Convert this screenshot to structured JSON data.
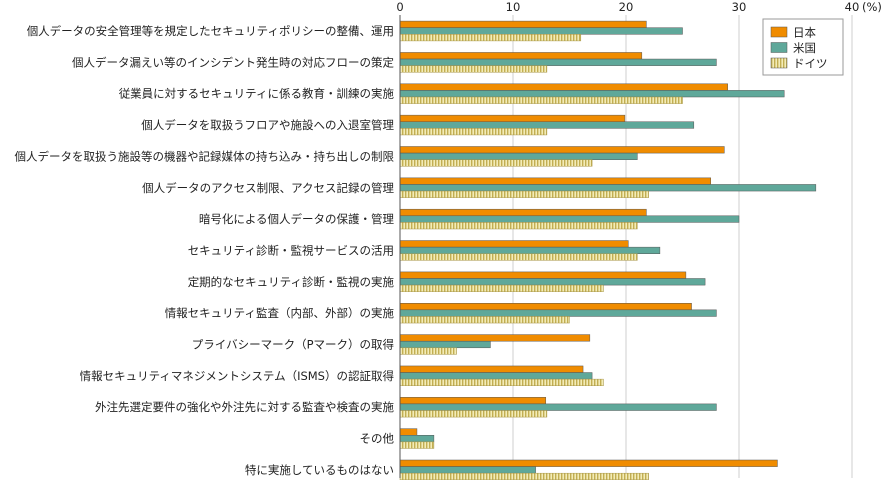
{
  "chart_data": {
    "type": "bar",
    "orientation": "horizontal",
    "categories": [
      "個人データの安全管理等を規定したセキュリティポリシーの整備、運用",
      "個人データ漏えい等のインシデント発生時の対応フローの策定",
      "従業員に対するセキュリティに係る教育・訓練の実施",
      "個人データを取扱うフロアや施設への入退室管理",
      "個人データを取扱う施設等の機器や記録媒体の持ち込み・持ち出しの制限",
      "個人データのアクセス制限、アクセス記録の管理",
      "暗号化による個人データの保護・管理",
      "セキュリティ診断・監視サービスの活用",
      "定期的なセキュリティ診断・監視の実施",
      "情報セキュリティ監査（内部、外部）の実施",
      "プライバシーマーク（Pマーク）の取得",
      "情報セキュリティマネジメントシステム（ISMS）の認証取得",
      "外注先選定要件の強化や外注先に対する監査や検査の実施",
      "その他",
      "特に実施しているものはない"
    ],
    "series": [
      {
        "name": "日本",
        "color": "#f08c00",
        "values": [
          21.8,
          21.4,
          29.0,
          19.9,
          28.7,
          27.5,
          21.8,
          20.2,
          25.3,
          25.8,
          16.8,
          16.2,
          12.9,
          1.5,
          33.4
        ]
      },
      {
        "name": "米国",
        "color": "#5fa89a",
        "values": [
          25.0,
          28.0,
          34.0,
          26.0,
          21.0,
          36.8,
          30.0,
          23.0,
          27.0,
          28.0,
          8.0,
          17.0,
          28.0,
          3.0,
          12.0
        ]
      },
      {
        "name": "ドイツ",
        "color": "#ddd08a",
        "pattern": "vertical-stripes",
        "values": [
          16.0,
          13.0,
          25.0,
          13.0,
          17.0,
          22.0,
          21.0,
          21.0,
          18.0,
          15.0,
          5.0,
          18.0,
          13.0,
          3.0,
          22.0
        ]
      }
    ],
    "xlim": [
      0,
      40
    ],
    "xticks": [
      0,
      10,
      20,
      30,
      40
    ],
    "unit_label": "(%)",
    "legend_position": "top-right",
    "grid": true
  }
}
